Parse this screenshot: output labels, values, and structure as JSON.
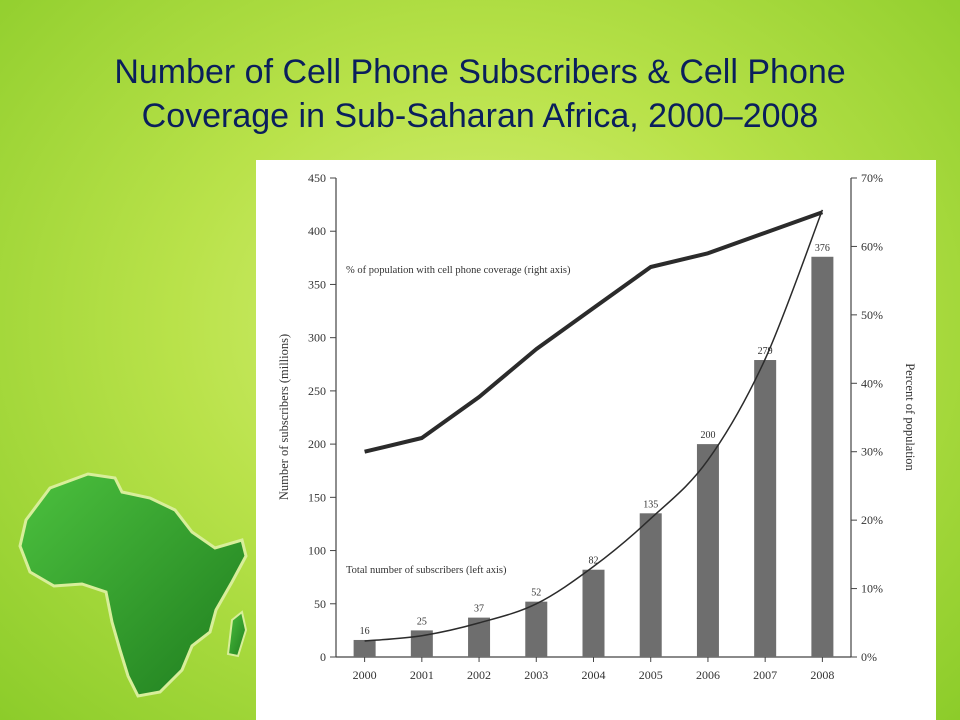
{
  "slide": {
    "title_line1": "Number of Cell Phone Subscribers & Cell Phone",
    "title_line2": "Coverage in Sub-Saharan Africa, 2000–2008"
  },
  "colors": {
    "background": "#b9e24a",
    "title": "#0a1f5c",
    "bar": "#6e6e6e",
    "line": "#2b2b2b",
    "map_fill": "#2f9a2c"
  },
  "chart_data": {
    "type": "bar",
    "categories": [
      "2000",
      "2001",
      "2002",
      "2003",
      "2004",
      "2005",
      "2006",
      "2007",
      "2008"
    ],
    "series": [
      {
        "name": "Total number of subscribers (left axis)",
        "type": "bar",
        "axis": "left",
        "values": [
          16,
          25,
          37,
          52,
          82,
          135,
          200,
          279,
          376
        ],
        "data_labels": [
          "16",
          "25",
          "37",
          "52",
          "82",
          "135",
          "200",
          "279",
          "376"
        ]
      },
      {
        "name": "% of population with cell phone coverage (right axis)",
        "type": "line",
        "axis": "right",
        "values": [
          30,
          32,
          38,
          45,
          51,
          57,
          59,
          62,
          65
        ]
      },
      {
        "type": "line",
        "axis": "left",
        "trend": "exponential",
        "values": [
          15,
          20,
          32,
          50,
          85,
          130,
          185,
          280,
          420
        ]
      }
    ],
    "ylabel": "Number of subscribers (millions)",
    "ylabel_right": "Percent of population",
    "ylim": [
      0,
      450
    ],
    "ylim_right": [
      0,
      70
    ],
    "yticks": [
      "0",
      "50",
      "100",
      "150",
      "200",
      "250",
      "300",
      "350",
      "400",
      "450"
    ],
    "yticks_right": [
      "0%",
      "10%",
      "20%",
      "30%",
      "40%",
      "50%",
      "60%",
      "70%"
    ],
    "grid": false
  }
}
